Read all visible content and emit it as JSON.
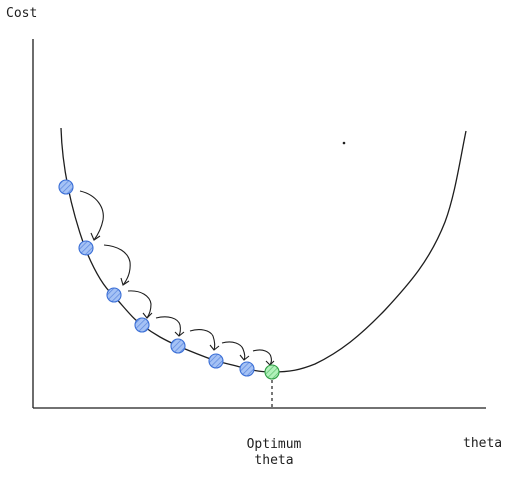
{
  "axes": {
    "y_label": "Cost",
    "x_label": "theta"
  },
  "optimum": {
    "label_line1": "Optimum",
    "label_line2": "theta"
  },
  "colors": {
    "line": "#1e1e1e",
    "step_fill": "#a5c2f5",
    "step_stroke": "#3b6fd6",
    "optimum_fill": "#b2f2bb",
    "optimum_stroke": "#2f9e44"
  },
  "gradient_steps": 8
}
